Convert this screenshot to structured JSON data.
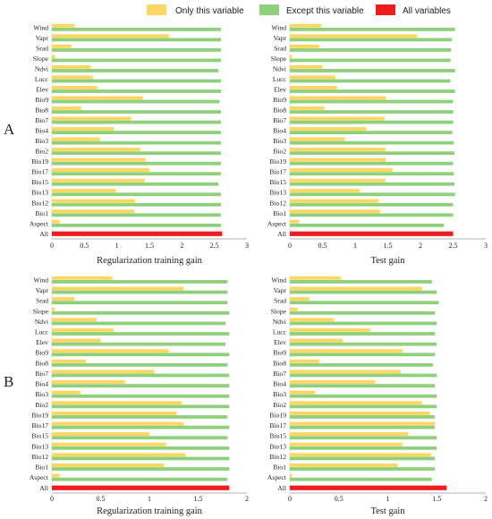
{
  "legend": [
    {
      "label": "Only this variable",
      "color": "#fdd766"
    },
    {
      "label": "Except this variable",
      "color": "#8ed07c"
    },
    {
      "label": "All variables",
      "color": "#ee1c1c"
    }
  ],
  "panel_labels": [
    "A",
    "B"
  ],
  "chart_data": [
    {
      "type": "bar",
      "orientation": "horizontal",
      "panel": "A",
      "xlabel": "Regularization training gain",
      "xlim": [
        0,
        3
      ],
      "xticks": [
        "0",
        "0.5",
        "1",
        "1.5",
        "2",
        "2.5",
        "3"
      ],
      "categories": [
        "Wind",
        "Vapr",
        "Srad",
        "Slope",
        "Ndvi",
        "Lucc",
        "Elev",
        "Bio9",
        "Bio8",
        "Bio7",
        "Bio4",
        "Bio3",
        "Bio2",
        "Bio19",
        "Bio17",
        "Bio15",
        "Bio13",
        "Bio12",
        "Bio1",
        "Aspect",
        "All"
      ],
      "series": [
        {
          "name": "Only this variable",
          "values": [
            0.35,
            1.8,
            0.3,
            0.05,
            0.6,
            0.63,
            0.7,
            1.4,
            0.45,
            1.22,
            0.95,
            0.74,
            1.36,
            1.44,
            1.5,
            1.43,
            0.98,
            1.28,
            1.27,
            0.12,
            null
          ]
        },
        {
          "name": "Except this variable",
          "values": [
            2.6,
            2.6,
            2.6,
            2.6,
            2.56,
            2.6,
            2.6,
            2.58,
            2.6,
            2.6,
            2.6,
            2.6,
            2.6,
            2.6,
            2.6,
            2.56,
            2.6,
            2.6,
            2.6,
            2.6,
            null
          ]
        },
        {
          "name": "All variables",
          "values": [
            null,
            null,
            null,
            null,
            null,
            null,
            null,
            null,
            null,
            null,
            null,
            null,
            null,
            null,
            null,
            null,
            null,
            null,
            null,
            null,
            2.62
          ]
        }
      ]
    },
    {
      "type": "bar",
      "orientation": "horizontal",
      "panel": "A",
      "xlabel": "Test gain",
      "xlim": [
        0,
        3
      ],
      "xticks": [
        "0",
        "0.5",
        "1",
        "1.5",
        "2",
        "2.5",
        "3"
      ],
      "categories": [
        "Wind",
        "Vapr",
        "Srad",
        "Slope",
        "Ndvi",
        "Lucc",
        "Elev",
        "Bio9",
        "Bio8",
        "Bio7",
        "Bio4",
        "Bio3",
        "Bio2",
        "Bio19",
        "Bio17",
        "Bio15",
        "Bio13",
        "Bio12",
        "Bio1",
        "Aspect",
        "All"
      ],
      "series": [
        {
          "name": "Only this variable",
          "values": [
            0.48,
            1.95,
            0.45,
            0.03,
            0.5,
            0.7,
            0.72,
            1.47,
            0.53,
            1.45,
            1.17,
            0.84,
            1.46,
            1.47,
            1.57,
            1.46,
            1.07,
            1.36,
            1.38,
            0.14,
            null
          ]
        },
        {
          "name": "Except this variable",
          "values": [
            2.53,
            2.48,
            2.47,
            2.46,
            2.53,
            2.46,
            2.53,
            2.5,
            2.5,
            2.5,
            2.49,
            2.51,
            2.52,
            2.5,
            2.51,
            2.52,
            2.53,
            2.5,
            2.5,
            2.36,
            null
          ]
        },
        {
          "name": "All variables",
          "values": [
            null,
            null,
            null,
            null,
            null,
            null,
            null,
            null,
            null,
            null,
            null,
            null,
            null,
            null,
            null,
            null,
            null,
            null,
            null,
            null,
            2.5
          ]
        }
      ]
    },
    {
      "type": "bar",
      "orientation": "horizontal",
      "panel": "B",
      "xlabel": "Regularization training gain",
      "xlim": [
        0,
        2
      ],
      "xticks": [
        "0",
        "0.5",
        "1",
        "1.5",
        "2"
      ],
      "categories": [
        "Wind",
        "Vapr",
        "Srad",
        "Slope",
        "Ndvi",
        "Lucc",
        "Elev",
        "Bio9",
        "Bio8",
        "Bio7",
        "Bio4",
        "Bio3",
        "Bio2",
        "Bio19",
        "Bio17",
        "Bio15",
        "Bio13",
        "Bio12",
        "Bio1",
        "Aspect",
        "All"
      ],
      "series": [
        {
          "name": "Only this variable",
          "values": [
            0.62,
            1.35,
            0.23,
            0.03,
            0.46,
            0.63,
            0.5,
            1.2,
            0.35,
            1.05,
            0.75,
            0.29,
            1.33,
            1.28,
            1.35,
            1.0,
            1.17,
            1.37,
            1.15,
            0.08,
            null
          ]
        },
        {
          "name": "Except this variable",
          "values": [
            1.8,
            1.8,
            1.8,
            1.82,
            1.78,
            1.82,
            1.78,
            1.82,
            1.8,
            1.82,
            1.82,
            1.82,
            1.82,
            1.8,
            1.82,
            1.8,
            1.82,
            1.82,
            1.82,
            1.8,
            null
          ]
        },
        {
          "name": "All variables",
          "values": [
            null,
            null,
            null,
            null,
            null,
            null,
            null,
            null,
            null,
            null,
            null,
            null,
            null,
            null,
            null,
            null,
            null,
            null,
            null,
            null,
            1.82
          ]
        }
      ]
    },
    {
      "type": "bar",
      "orientation": "horizontal",
      "panel": "B",
      "xlabel": "Test gain",
      "xlim": [
        0,
        2
      ],
      "xticks": [
        "0",
        "0.5",
        "1",
        "1.5",
        "2"
      ],
      "categories": [
        "Wind",
        "Vapr",
        "Srad",
        "Slope",
        "Ndvi",
        "Lucc",
        "Elev",
        "Bio9",
        "Bio8",
        "Bio7",
        "Bio4",
        "Bio3",
        "Bio2",
        "Bio19",
        "Bio17",
        "Bio15",
        "Bio13",
        "Bio12",
        "Bio1",
        "Aspect",
        "All"
      ],
      "series": [
        {
          "name": "Only this variable",
          "values": [
            0.52,
            1.35,
            0.2,
            0.08,
            0.45,
            0.82,
            0.54,
            1.15,
            0.3,
            1.13,
            0.87,
            0.26,
            1.35,
            1.43,
            1.48,
            1.21,
            1.15,
            1.44,
            1.1,
            0.02,
            null
          ]
        },
        {
          "name": "Except this variable",
          "values": [
            1.45,
            1.5,
            1.52,
            1.48,
            1.5,
            1.48,
            1.5,
            1.48,
            1.46,
            1.5,
            1.48,
            1.5,
            1.5,
            1.48,
            1.48,
            1.5,
            1.5,
            1.48,
            1.48,
            1.45,
            null
          ]
        },
        {
          "name": "All variables",
          "values": [
            null,
            null,
            null,
            null,
            null,
            null,
            null,
            null,
            null,
            null,
            null,
            null,
            null,
            null,
            null,
            null,
            null,
            null,
            null,
            null,
            1.6
          ]
        }
      ]
    }
  ]
}
